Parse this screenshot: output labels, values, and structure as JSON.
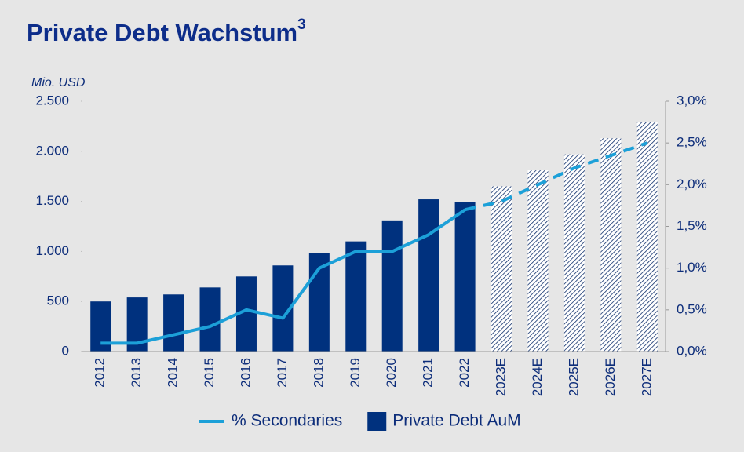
{
  "chart_data": {
    "type": "bar_line",
    "title": "Private Debt Wachstum",
    "title_superscript": "3",
    "y_axis_label": "Mio. USD",
    "categories": [
      "2012",
      "2013",
      "2014",
      "2015",
      "2016",
      "2017",
      "2018",
      "2019",
      "2020",
      "2021",
      "2022",
      "2023E",
      "2024E",
      "2025E",
      "2026E",
      "2027E"
    ],
    "series": [
      {
        "name": "Private Debt AuM",
        "type": "bar",
        "axis": "y",
        "color": "#00317e",
        "values": [
          500,
          540,
          570,
          640,
          750,
          860,
          980,
          1100,
          1310,
          1520,
          1490,
          1650,
          1810,
          1970,
          2130,
          2290
        ],
        "styles": [
          "solid",
          "solid",
          "solid",
          "solid",
          "solid",
          "solid",
          "solid",
          "solid",
          "solid",
          "solid",
          "solid",
          "hatched",
          "hatched",
          "hatched",
          "hatched",
          "hatched"
        ]
      },
      {
        "name": "% Secondaries",
        "type": "line",
        "axis": "y2",
        "color": "#1ca0d8",
        "values": [
          0.1,
          0.1,
          0.2,
          0.3,
          0.5,
          0.4,
          1.0,
          1.2,
          1.2,
          1.4,
          1.7,
          1.8,
          2.0,
          2.2,
          2.35,
          2.5
        ]
      }
    ],
    "ylim": [
      0,
      2500
    ],
    "yticks": [
      0,
      500,
      {
        "value": 1000,
        "label": "1.000"
      },
      {
        "value": 1500,
        "label": "1.500"
      },
      {
        "value": 2000,
        "label": "2.000"
      },
      {
        "value": 2500,
        "label": "2.500"
      }
    ],
    "y2lim": [
      0,
      3.0
    ],
    "y2ticks": [
      {
        "value": 0,
        "label": "0,0%"
      },
      {
        "value": 0.5,
        "label": "0,5%"
      },
      {
        "value": 1.0,
        "label": "1,0%"
      },
      {
        "value": 1.5,
        "label": "1,5%"
      },
      {
        "value": 2.0,
        "label": "2,0%"
      },
      {
        "value": 2.5,
        "label": "2,5%"
      },
      {
        "value": 3.0,
        "label": "3,0%"
      }
    ],
    "grid": false,
    "legend": "bottom"
  }
}
